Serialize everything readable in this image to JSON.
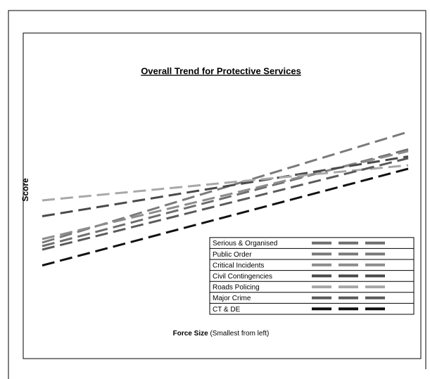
{
  "chart_data": {
    "type": "line",
    "title": "Overall Trend for Protective Services",
    "y_label": "Score",
    "x_label": "Force Size",
    "x_label_detail": "(Smallest from left)",
    "categories": [
      null,
      null
    ],
    "ylim": [
      0,
      100
    ],
    "grid": false,
    "legend": "lower right",
    "series": [
      {
        "name": "Serious & Organised",
        "color": "#6e6e6e",
        "values": [
          20,
          75
        ]
      },
      {
        "name": "Public Order",
        "color": "#7a7a7a",
        "values": [
          22,
          85
        ]
      },
      {
        "name": "Critical Incidents",
        "color": "#8c8c8c",
        "values": [
          24,
          74
        ]
      },
      {
        "name": "Civil Contingencies",
        "color": "#4a4a4a",
        "values": [
          37,
          71
        ]
      },
      {
        "name": "Roads Policing",
        "color": "#a8a8a8",
        "values": [
          46,
          66
        ]
      },
      {
        "name": "Major Crime",
        "color": "#5a5a5a",
        "values": [
          18,
          70
        ]
      },
      {
        "name": "CT & DE",
        "color": "#111111",
        "values": [
          9,
          64
        ]
      }
    ]
  }
}
